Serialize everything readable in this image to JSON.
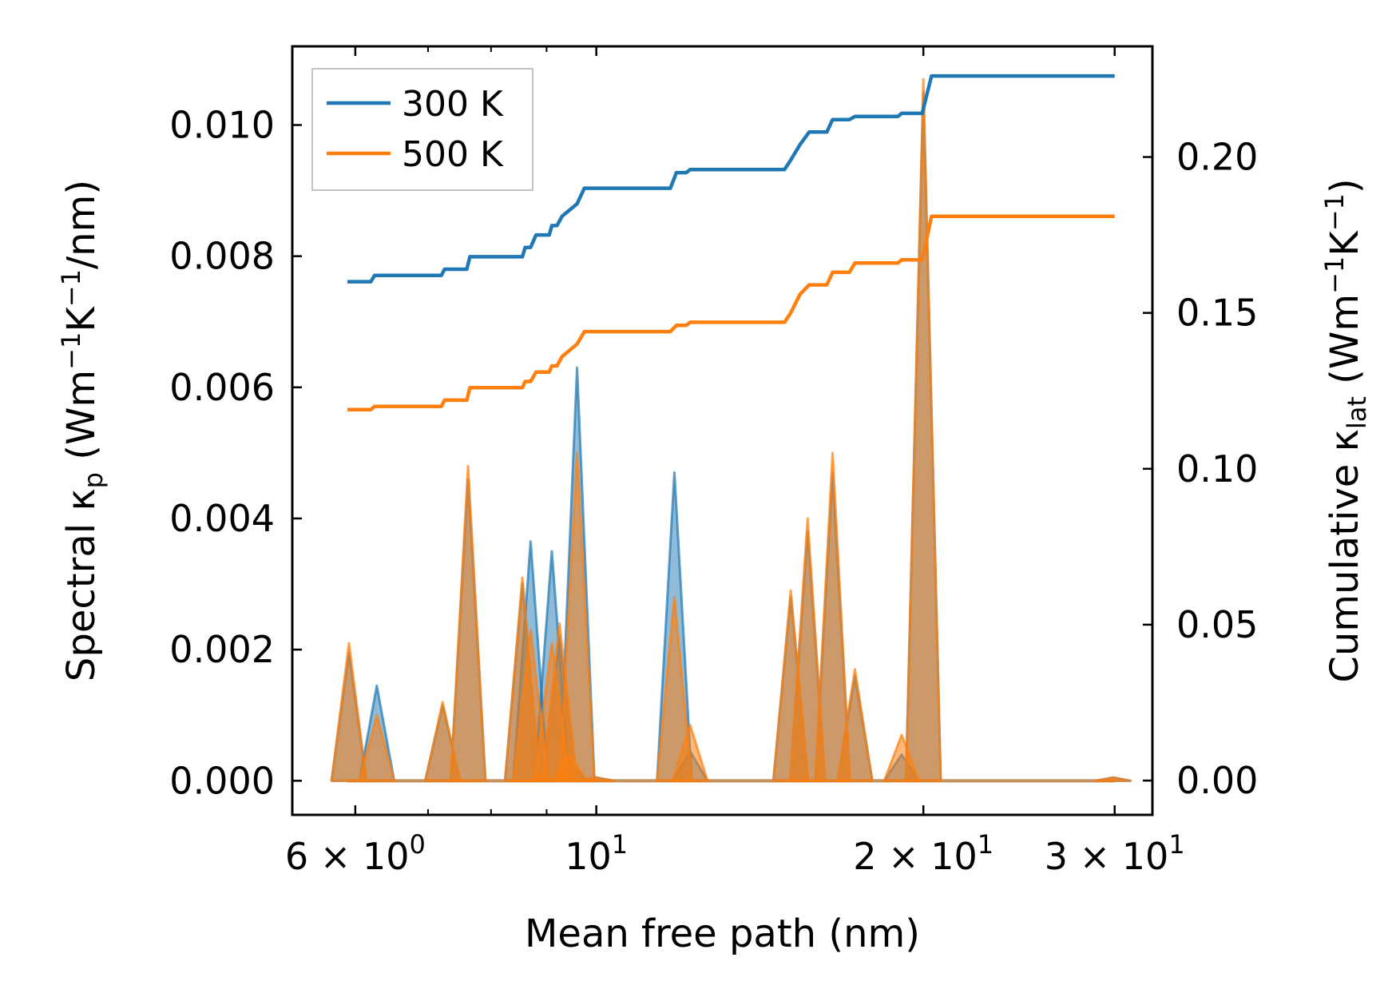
{
  "chart_data": {
    "type": "line",
    "xlabel": "Mean free path (nm)",
    "ylabel_left_parts": [
      "Spectral κ",
      "p",
      " (Wm",
      "−1",
      "K",
      "−1",
      "/nm)"
    ],
    "ylabel_right_parts": [
      "Cumulative κ",
      "lat",
      " (Wm",
      "−1",
      "K",
      "−1",
      ")"
    ],
    "x_scale": "log",
    "xlim": [
      5.25,
      32.5
    ],
    "ylim_left": [
      -0.00052,
      0.0112
    ],
    "ylim_right": [
      -0.011,
      0.2355
    ],
    "x_ticks": [
      {
        "value": 6,
        "base": "6 × 10",
        "exp": "0"
      },
      {
        "value": 10,
        "base": "10",
        "exp": "1"
      },
      {
        "value": 20,
        "base": "2 × 10",
        "exp": "1"
      },
      {
        "value": 30,
        "base": "3 × 10",
        "exp": "1"
      }
    ],
    "x_minor_ticks": [
      7,
      8,
      9,
      40
    ],
    "y_left_ticks": [
      "0.000",
      "0.002",
      "0.004",
      "0.006",
      "0.008",
      "0.010"
    ],
    "y_left_tick_values": [
      0,
      0.002,
      0.004,
      0.006,
      0.008,
      0.01
    ],
    "y_right_ticks": [
      "0.00",
      "0.05",
      "0.10",
      "0.15",
      "0.20"
    ],
    "y_right_tick_values": [
      0,
      0.05,
      0.1,
      0.15,
      0.2
    ],
    "legend": {
      "position": "top-left",
      "entries": [
        "300 K",
        "500 K"
      ]
    },
    "series": [
      {
        "name": "300 K",
        "color": "#1f77b4",
        "cumulative": [
          [
            5.9,
            0.16
          ],
          [
            6.2,
            0.16
          ],
          [
            6.25,
            0.162
          ],
          [
            7.2,
            0.162
          ],
          [
            7.25,
            0.164
          ],
          [
            7.6,
            0.164
          ],
          [
            7.65,
            0.168
          ],
          [
            8.55,
            0.168
          ],
          [
            8.6,
            0.171
          ],
          [
            8.7,
            0.171
          ],
          [
            8.8,
            0.175
          ],
          [
            9.05,
            0.175
          ],
          [
            9.1,
            0.178
          ],
          [
            9.2,
            0.178
          ],
          [
            9.3,
            0.181
          ],
          [
            9.6,
            0.185
          ],
          [
            9.75,
            0.19
          ],
          [
            11.7,
            0.19
          ],
          [
            11.85,
            0.195
          ],
          [
            12.1,
            0.195
          ],
          [
            12.2,
            0.196
          ],
          [
            14.9,
            0.196
          ],
          [
            15.1,
            0.199
          ],
          [
            15.4,
            0.204
          ],
          [
            15.7,
            0.208
          ],
          [
            16.3,
            0.208
          ],
          [
            16.5,
            0.212
          ],
          [
            17.1,
            0.212
          ],
          [
            17.3,
            0.213
          ],
          [
            18.95,
            0.213
          ],
          [
            19.1,
            0.214
          ],
          [
            19.95,
            0.214
          ],
          [
            20.35,
            0.226
          ],
          [
            30.0,
            0.226
          ]
        ],
        "spectral_peaks": [
          [
            5.92,
            0.00195
          ],
          [
            6.28,
            0.00145
          ],
          [
            7.22,
            0.00115
          ],
          [
            7.62,
            0.0046
          ],
          [
            8.55,
            0.003
          ],
          [
            8.7,
            0.00365
          ],
          [
            9.1,
            0.0035
          ],
          [
            9.25,
            0.0022
          ],
          [
            9.45,
            0.0003
          ],
          [
            9.6,
            0.0063
          ],
          [
            10.0,
            5e-05
          ],
          [
            11.8,
            0.0047
          ],
          [
            12.2,
            0.00045
          ],
          [
            15.1,
            0.0028
          ],
          [
            15.65,
            0.0038
          ],
          [
            16.5,
            0.0047
          ],
          [
            17.3,
            0.0016
          ],
          [
            19.1,
            0.0004
          ],
          [
            20.0,
            0.0105
          ],
          [
            29.9,
            5e-05
          ]
        ]
      },
      {
        "name": "500 K",
        "color": "#ff7f0e",
        "cumulative": [
          [
            5.9,
            0.119
          ],
          [
            6.2,
            0.119
          ],
          [
            6.25,
            0.12
          ],
          [
            7.2,
            0.12
          ],
          [
            7.25,
            0.122
          ],
          [
            7.6,
            0.122
          ],
          [
            7.65,
            0.126
          ],
          [
            8.55,
            0.126
          ],
          [
            8.6,
            0.128
          ],
          [
            8.7,
            0.128
          ],
          [
            8.8,
            0.131
          ],
          [
            9.05,
            0.131
          ],
          [
            9.1,
            0.133
          ],
          [
            9.2,
            0.133
          ],
          [
            9.3,
            0.136
          ],
          [
            9.6,
            0.14
          ],
          [
            9.75,
            0.144
          ],
          [
            11.7,
            0.144
          ],
          [
            11.85,
            0.146
          ],
          [
            12.1,
            0.146
          ],
          [
            12.2,
            0.147
          ],
          [
            14.9,
            0.147
          ],
          [
            15.1,
            0.15
          ],
          [
            15.4,
            0.156
          ],
          [
            15.7,
            0.159
          ],
          [
            16.3,
            0.159
          ],
          [
            16.5,
            0.163
          ],
          [
            17.1,
            0.163
          ],
          [
            17.3,
            0.166
          ],
          [
            18.95,
            0.166
          ],
          [
            19.1,
            0.167
          ],
          [
            19.95,
            0.167
          ],
          [
            20.35,
            0.181
          ],
          [
            30.0,
            0.181
          ]
        ],
        "spectral_peaks": [
          [
            5.92,
            0.0021
          ],
          [
            6.28,
            0.001
          ],
          [
            7.22,
            0.0012
          ],
          [
            7.62,
            0.0048
          ],
          [
            8.55,
            0.0031
          ],
          [
            8.7,
            0.0023
          ],
          [
            9.1,
            0.0021
          ],
          [
            9.25,
            0.0024
          ],
          [
            9.45,
            0.0004
          ],
          [
            9.6,
            0.005
          ],
          [
            10.0,
            5e-05
          ],
          [
            11.8,
            0.0028
          ],
          [
            12.2,
            0.00085
          ],
          [
            15.1,
            0.0029
          ],
          [
            15.65,
            0.004
          ],
          [
            16.5,
            0.005
          ],
          [
            17.3,
            0.0017
          ],
          [
            19.1,
            0.0007
          ],
          [
            20.0,
            0.0107
          ],
          [
            29.9,
            5e-05
          ]
        ]
      }
    ]
  }
}
